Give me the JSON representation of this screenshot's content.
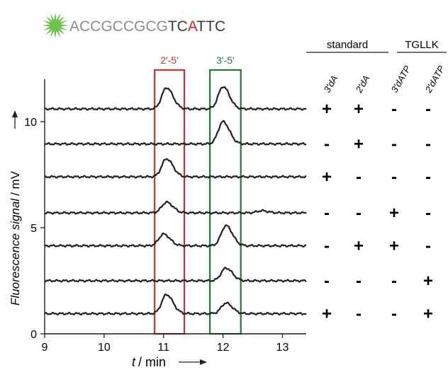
{
  "sequence": {
    "segments": [
      {
        "text": "ACCGCCGCG",
        "color": "#8c8c8c"
      },
      {
        "text": "TC",
        "color": "#3a3a3a"
      },
      {
        "text": "A",
        "color": "#e02020"
      },
      {
        "text": "TTC",
        "color": "#3a3a3a"
      }
    ],
    "label_icon": "green-starburst-fluorophore-icon",
    "label_color": "#6cc24a"
  },
  "colors": {
    "red_box": "#d0312d",
    "green_box": "#1f7a3a",
    "trace": "#231f20"
  },
  "table": {
    "groups": [
      {
        "label": "standard",
        "columns": [
          "3'dA",
          "2'dA"
        ]
      },
      {
        "label": "TGLLK",
        "columns": [
          "3'dATP",
          "2'dATP"
        ]
      }
    ],
    "rows": [
      [
        "+",
        "+",
        "-",
        "-"
      ],
      [
        "-",
        "+",
        "-",
        "-"
      ],
      [
        "+",
        "-",
        "-",
        "-"
      ],
      [
        "-",
        "-",
        "+",
        "-"
      ],
      [
        "-",
        "+",
        "+",
        "-"
      ],
      [
        "-",
        "-",
        "-",
        "+"
      ],
      [
        "+",
        "-",
        "-",
        "+"
      ]
    ]
  },
  "chart_data": {
    "type": "line",
    "title": "",
    "xlabel_var": "t",
    "xlabel_unit": "/ min",
    "ylabel_var": "Fluorescence signal",
    "ylabel_unit": "/ mV",
    "xlim": [
      9,
      13.4
    ],
    "ylim": [
      0,
      12
    ],
    "x_ticks": [
      9,
      10,
      11,
      12,
      13
    ],
    "y_ticks": [
      0,
      5,
      10
    ],
    "grid": false,
    "regions": [
      {
        "label": "2'-5'",
        "x_range": [
          10.85,
          11.35
        ],
        "color": "#d0312d"
      },
      {
        "label": "3'-5'",
        "x_range": [
          11.78,
          12.3
        ],
        "color": "#1f7a3a"
      }
    ],
    "series": [
      {
        "baseline": 10.6,
        "peaks": [
          {
            "x": 11.05,
            "height": 1.0
          },
          {
            "x": 12.0,
            "height": 1.05
          }
        ]
      },
      {
        "baseline": 8.95,
        "peaks": [
          {
            "x": 12.0,
            "height": 1.05
          }
        ]
      },
      {
        "baseline": 7.4,
        "peaks": [
          {
            "x": 11.05,
            "height": 0.85
          }
        ]
      },
      {
        "baseline": 5.7,
        "peaks": [
          {
            "x": 11.05,
            "height": 0.5
          },
          {
            "x": 12.65,
            "height": 0.1
          }
        ]
      },
      {
        "baseline": 4.15,
        "peaks": [
          {
            "x": 11.0,
            "height": 0.55
          },
          {
            "x": 12.05,
            "height": 0.95
          }
        ]
      },
      {
        "baseline": 2.5,
        "peaks": [
          {
            "x": 12.05,
            "height": 0.6
          }
        ]
      },
      {
        "baseline": 0.95,
        "peaks": [
          {
            "x": 11.05,
            "height": 0.9
          },
          {
            "x": 12.05,
            "height": 0.5
          }
        ]
      }
    ]
  }
}
